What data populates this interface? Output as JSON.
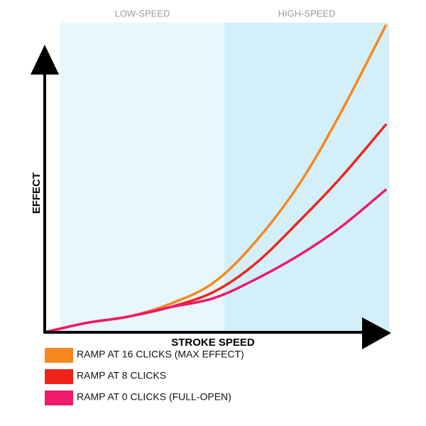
{
  "chart_data": {
    "type": "line",
    "x_label": "STROKE SPEED",
    "y_label": "EFFECT",
    "xlim": [
      0,
      100
    ],
    "ylim": [
      0,
      100
    ],
    "grid": false,
    "regions": [
      {
        "label": "LOW-SPEED",
        "start": 4.5,
        "end": 52.2,
        "color": "#e8f7fc"
      },
      {
        "label": "HIGH-SPEED",
        "start": 52.2,
        "end": 100,
        "color": "#d3f0fa"
      }
    ],
    "x": [
      0,
      12,
      24,
      36,
      49,
      61,
      74,
      86,
      99
    ],
    "series": [
      {
        "name": "RAMP AT 16 CLICKS (MAX EFFECT)",
        "color": "#f7871f",
        "values": [
          0,
          3,
          5,
          9,
          16,
          29,
          48,
          71,
          99
        ]
      },
      {
        "name": "RAMP AT 8 CLICKS",
        "color": "#f0241b",
        "values": [
          0,
          3,
          5,
          8,
          13,
          22,
          36,
          50,
          67
        ]
      },
      {
        "name": "RAMP AT 0 CLICKS (FULL-OPEN)",
        "color": "#f0196a",
        "values": [
          0,
          3,
          5,
          8,
          11,
          17,
          25,
          34,
          46
        ]
      }
    ]
  }
}
